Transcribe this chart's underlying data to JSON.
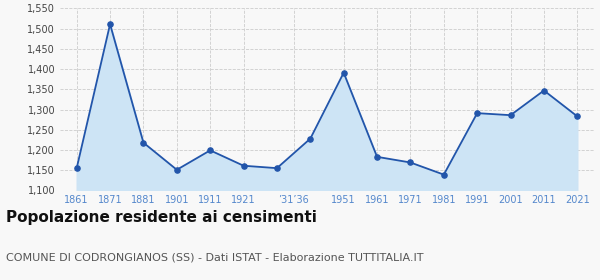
{
  "years": [
    1861,
    1871,
    1881,
    1901,
    1911,
    1921,
    1931,
    1936,
    1951,
    1961,
    1971,
    1981,
    1991,
    2001,
    2011,
    2021
  ],
  "population": [
    1155,
    1511,
    1218,
    1151,
    1199,
    1161,
    1155,
    1228,
    1391,
    1183,
    1169,
    1139,
    1291,
    1286,
    1347,
    1283
  ],
  "x_tick_labels": [
    "1861",
    "1871",
    "1881",
    "1901",
    "1911",
    "1921",
    "’31’36",
    "1951",
    "1961",
    "1971",
    "1981",
    "1991",
    "2001",
    "2011",
    "2021"
  ],
  "x_tick_positions": [
    0,
    1,
    2,
    3,
    4,
    5,
    6.5,
    8,
    9,
    10,
    11,
    12,
    13,
    14,
    15
  ],
  "ylim": [
    1100,
    1550
  ],
  "yticks": [
    1100,
    1150,
    1200,
    1250,
    1300,
    1350,
    1400,
    1450,
    1500,
    1550
  ],
  "line_color": "#2255aa",
  "fill_color": "#cde4f5",
  "marker_color": "#2255aa",
  "grid_color": "#cccccc",
  "background_color": "#f8f8f8",
  "title": "Popolazione residente ai censimenti",
  "subtitle": "COMUNE DI CODRONGIANOS (SS) - Dati ISTAT - Elaborazione TUTTITALIA.IT",
  "title_fontsize": 11,
  "subtitle_fontsize": 8,
  "tick_color": "#5588cc",
  "tick_fontsize": 7
}
